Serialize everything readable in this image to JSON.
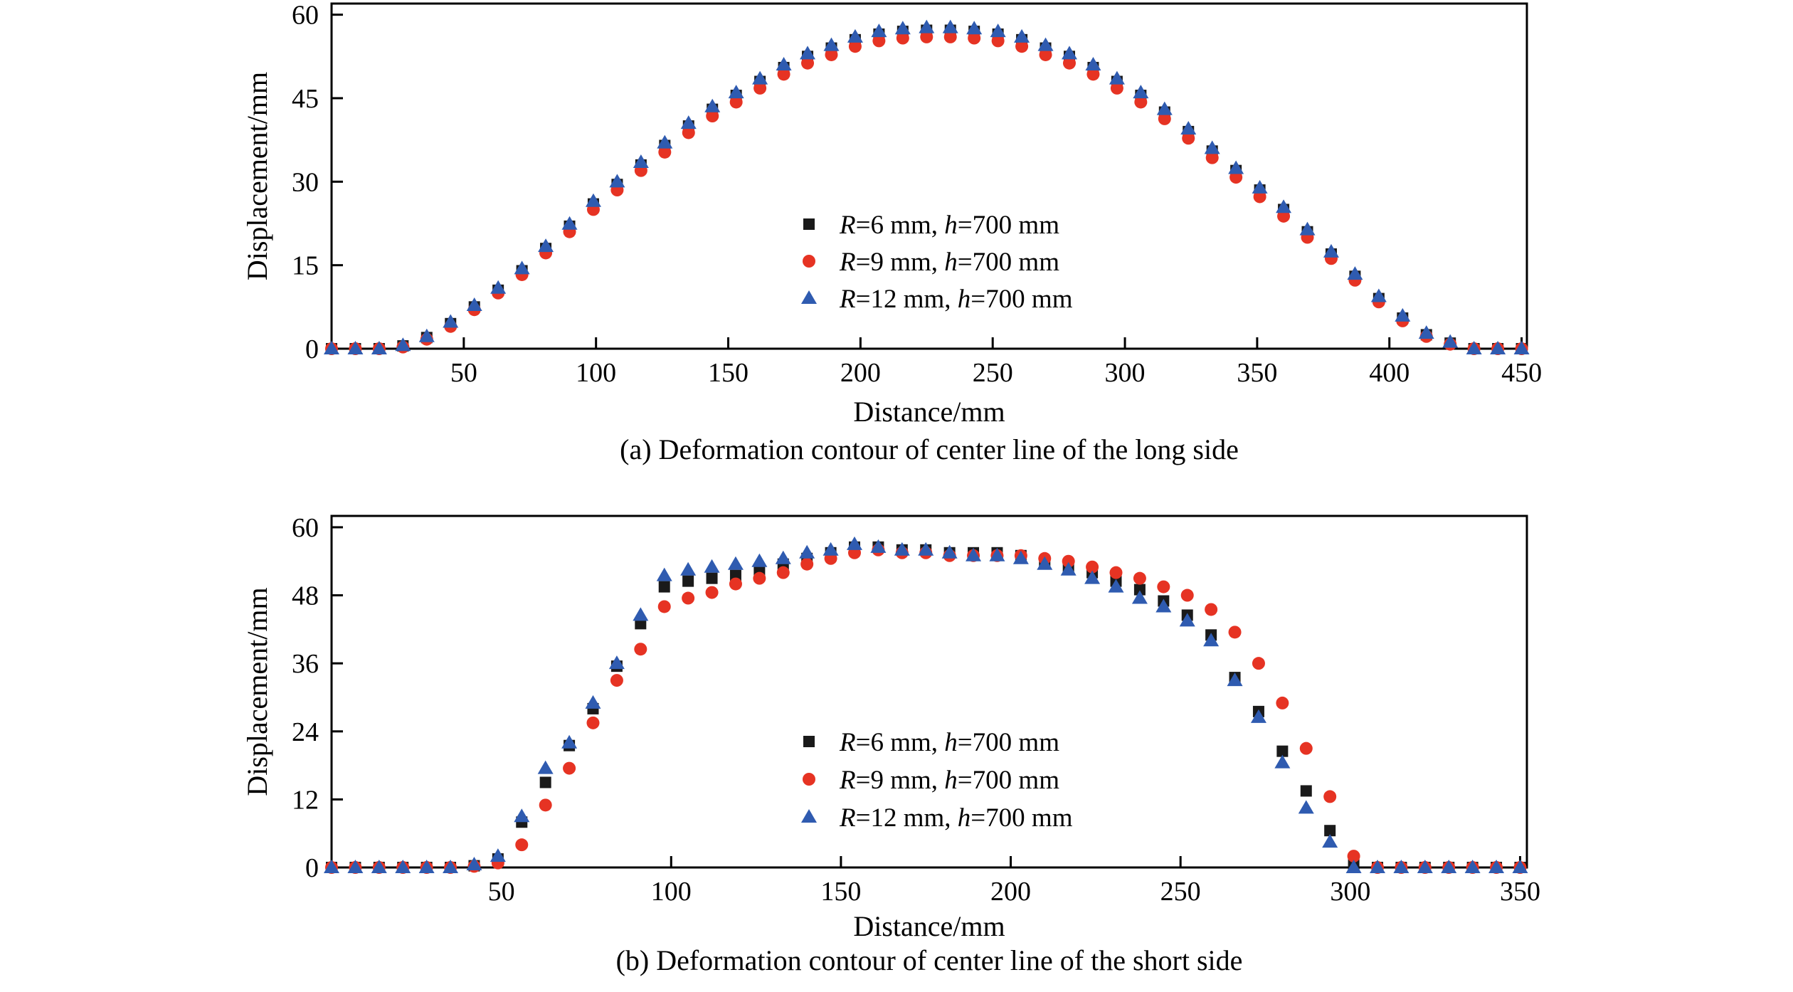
{
  "page": {
    "background": "#ffffff",
    "text_color": "#000000"
  },
  "chart_data": [
    {
      "type": "scatter",
      "caption": "(a) Deformation contour of center line of the long side",
      "xlabel": "Distance/mm",
      "ylabel": "Displacement/mm",
      "xlim": [
        0,
        452
      ],
      "ylim": [
        0,
        62
      ],
      "xticks": [
        50,
        100,
        150,
        200,
        250,
        300,
        350,
        400,
        450
      ],
      "yticks": [
        0,
        15,
        30,
        45,
        60
      ],
      "frame_color": "#000000",
      "legend_position": "inside-center",
      "series": [
        {
          "name": "r6",
          "marker": "square",
          "color": "#1a1a1a",
          "label": "R=6 mm, h=700 mm",
          "label_parts": [
            {
              "text": "R",
              "italic": true
            },
            {
              "text": "=6 mm, ",
              "italic": false
            },
            {
              "text": "h",
              "italic": true
            },
            {
              "text": "=700 mm",
              "italic": false
            }
          ],
          "x": [
            0,
            9,
            18,
            27,
            36,
            45,
            54,
            63,
            72,
            81,
            90,
            99,
            108,
            117,
            126,
            135,
            144,
            153,
            162,
            171,
            180,
            189,
            198,
            207,
            216,
            225,
            234,
            243,
            252,
            261,
            270,
            279,
            288,
            297,
            306,
            315,
            324,
            333,
            342,
            351,
            360,
            369,
            378,
            387,
            396,
            405,
            414,
            423,
            432,
            441,
            450
          ],
          "y": [
            0,
            0,
            0,
            0.5,
            2,
            4.5,
            7.5,
            10.5,
            14,
            18,
            22,
            26,
            29.5,
            33,
            36.5,
            40,
            43,
            45.5,
            48,
            50.5,
            52.5,
            54,
            55.5,
            56.5,
            57,
            57.2,
            57.2,
            57,
            56.5,
            55.5,
            54,
            52.5,
            50.5,
            48,
            45.5,
            42.5,
            39,
            35.5,
            32,
            28.5,
            25,
            21,
            17,
            13,
            9,
            5.5,
            2.5,
            1,
            0,
            0,
            0
          ]
        },
        {
          "name": "r9",
          "marker": "circle",
          "color": "#e63323",
          "label": "R=9 mm, h=700 mm",
          "label_parts": [
            {
              "text": "R",
              "italic": true
            },
            {
              "text": "=9 mm, ",
              "italic": false
            },
            {
              "text": "h",
              "italic": true
            },
            {
              "text": "=700 mm",
              "italic": false
            }
          ],
          "x": [
            0,
            9,
            18,
            27,
            36,
            45,
            54,
            63,
            72,
            81,
            90,
            99,
            108,
            117,
            126,
            135,
            144,
            153,
            162,
            171,
            180,
            189,
            198,
            207,
            216,
            225,
            234,
            243,
            252,
            261,
            270,
            279,
            288,
            297,
            306,
            315,
            324,
            333,
            342,
            351,
            360,
            369,
            378,
            387,
            396,
            405,
            414,
            423,
            432,
            441,
            450
          ],
          "y": [
            0,
            0,
            0,
            0.3,
            1.7,
            4,
            7,
            10,
            13.3,
            17.2,
            21,
            25,
            28.5,
            32,
            35.3,
            38.8,
            41.8,
            44.3,
            46.8,
            49.3,
            51.3,
            52.8,
            54.3,
            55.3,
            55.8,
            56,
            56,
            55.8,
            55.3,
            54.3,
            52.8,
            51.3,
            49.3,
            46.8,
            44.3,
            41.3,
            37.8,
            34.3,
            30.8,
            27.3,
            23.8,
            20,
            16.2,
            12.3,
            8.4,
            5,
            2.2,
            0.8,
            0,
            0,
            0
          ]
        },
        {
          "name": "r12",
          "marker": "triangle",
          "color": "#2f5bb0",
          "label": "R=12 mm, h=700 mm",
          "label_parts": [
            {
              "text": "R",
              "italic": true
            },
            {
              "text": "=12 mm, ",
              "italic": false
            },
            {
              "text": "h",
              "italic": true
            },
            {
              "text": "=700 mm",
              "italic": false
            }
          ],
          "x": [
            0,
            9,
            18,
            27,
            36,
            45,
            54,
            63,
            72,
            81,
            90,
            99,
            108,
            117,
            126,
            135,
            144,
            153,
            162,
            171,
            180,
            189,
            198,
            207,
            216,
            225,
            234,
            243,
            252,
            261,
            270,
            279,
            288,
            297,
            306,
            315,
            324,
            333,
            342,
            351,
            360,
            369,
            378,
            387,
            396,
            405,
            414,
            423,
            432,
            441,
            450
          ],
          "y": [
            0,
            0,
            0,
            0.6,
            2.2,
            4.8,
            7.8,
            10.9,
            14.4,
            18.4,
            22.4,
            26.5,
            30,
            33.5,
            37,
            40.5,
            43.5,
            46,
            48.5,
            51,
            53,
            54.5,
            56,
            57,
            57.5,
            57.7,
            57.7,
            57.5,
            57,
            56,
            54.5,
            53,
            51,
            48.5,
            46,
            43,
            39.5,
            36,
            32.4,
            28.9,
            25.4,
            21.4,
            17.4,
            13.4,
            9.4,
            5.9,
            2.8,
            1.2,
            0,
            0,
            0
          ]
        }
      ]
    },
    {
      "type": "scatter",
      "caption": "(b) Deformation contour of center line of the short side",
      "xlabel": "Distance/mm",
      "ylabel": "Displacement/mm",
      "xlim": [
        0,
        352
      ],
      "ylim": [
        0,
        62
      ],
      "xticks": [
        50,
        100,
        150,
        200,
        250,
        300,
        350
      ],
      "yticks": [
        0,
        12,
        24,
        36,
        48,
        60
      ],
      "frame_color": "#000000",
      "legend_position": "inside-center",
      "series": [
        {
          "name": "r6",
          "marker": "square",
          "color": "#1a1a1a",
          "label": "R=6 mm, h=700 mm",
          "label_parts": [
            {
              "text": "R",
              "italic": true
            },
            {
              "text": "=6 mm, ",
              "italic": false
            },
            {
              "text": "h",
              "italic": true
            },
            {
              "text": "=700 mm",
              "italic": false
            }
          ],
          "x": [
            0,
            7,
            14,
            21,
            28,
            35,
            42,
            49,
            56,
            63,
            70,
            77,
            84,
            91,
            98,
            105,
            112,
            119,
            126,
            133,
            140,
            147,
            154,
            161,
            168,
            175,
            182,
            189,
            196,
            203,
            210,
            217,
            224,
            231,
            238,
            245,
            252,
            259,
            266,
            273,
            280,
            287,
            294,
            301,
            308,
            315,
            322,
            329,
            336,
            343,
            350
          ],
          "y": [
            0,
            0,
            0,
            0,
            0,
            0,
            0.3,
            1.5,
            8,
            15,
            21.5,
            28,
            35.5,
            43,
            49.5,
            50.5,
            51,
            51.5,
            52.5,
            53.5,
            54.5,
            55.5,
            56.5,
            56.5,
            56,
            56,
            55.5,
            55.5,
            55.5,
            55,
            54,
            53,
            52,
            50.5,
            49,
            47,
            44.5,
            41,
            33.5,
            27.5,
            20.5,
            13.5,
            6.5,
            0.5,
            0,
            0,
            0,
            0,
            0,
            0,
            0
          ]
        },
        {
          "name": "r9",
          "marker": "circle",
          "color": "#e63323",
          "label": "R=9 mm, h=700 mm",
          "label_parts": [
            {
              "text": "R",
              "italic": true
            },
            {
              "text": "=9 mm, ",
              "italic": false
            },
            {
              "text": "h",
              "italic": true
            },
            {
              "text": "=700 mm",
              "italic": false
            }
          ],
          "x": [
            0,
            7,
            14,
            21,
            28,
            35,
            42,
            49,
            56,
            63,
            70,
            77,
            84,
            91,
            98,
            105,
            112,
            119,
            126,
            133,
            140,
            147,
            154,
            161,
            168,
            175,
            182,
            189,
            196,
            203,
            210,
            217,
            224,
            231,
            238,
            245,
            252,
            259,
            266,
            273,
            280,
            287,
            294,
            301,
            308,
            315,
            322,
            329,
            336,
            343,
            350
          ],
          "y": [
            0,
            0,
            0,
            0,
            0,
            0,
            0.2,
            0.8,
            4,
            11,
            17.5,
            25.5,
            33,
            38.5,
            46,
            47.5,
            48.5,
            50,
            51,
            52,
            53.5,
            54.5,
            55.5,
            56,
            55.5,
            55.5,
            55,
            55,
            55,
            55,
            54.5,
            54,
            53,
            52,
            51,
            49.5,
            48,
            45.5,
            41.5,
            36,
            29,
            21,
            12.5,
            2,
            0,
            0,
            0,
            0,
            0,
            0,
            0
          ]
        },
        {
          "name": "r12",
          "marker": "triangle",
          "color": "#2f5bb0",
          "label": "R=12 mm, h=700 mm",
          "label_parts": [
            {
              "text": "R",
              "italic": true
            },
            {
              "text": "=12 mm, ",
              "italic": false
            },
            {
              "text": "h",
              "italic": true
            },
            {
              "text": "=700 mm",
              "italic": false
            }
          ],
          "x": [
            0,
            7,
            14,
            21,
            28,
            35,
            42,
            49,
            56,
            63,
            70,
            77,
            84,
            91,
            98,
            105,
            112,
            119,
            126,
            133,
            140,
            147,
            154,
            161,
            168,
            175,
            182,
            189,
            196,
            203,
            210,
            217,
            224,
            231,
            238,
            245,
            252,
            259,
            266,
            273,
            280,
            287,
            294,
            301,
            308,
            315,
            322,
            329,
            336,
            343,
            350
          ],
          "y": [
            0,
            0,
            0,
            0,
            0,
            0,
            0.5,
            2,
            9,
            17.5,
            22,
            29,
            36,
            44.5,
            51.5,
            52.5,
            53,
            53.5,
            54,
            54.5,
            55.5,
            56,
            57,
            56.5,
            56,
            56,
            55.5,
            55,
            55,
            54.5,
            53.5,
            52.5,
            51,
            49.5,
            47.5,
            46,
            43.5,
            40,
            33,
            26.5,
            18.5,
            10.5,
            4.5,
            0,
            0,
            0,
            0,
            0,
            0,
            0,
            0
          ]
        }
      ]
    }
  ]
}
